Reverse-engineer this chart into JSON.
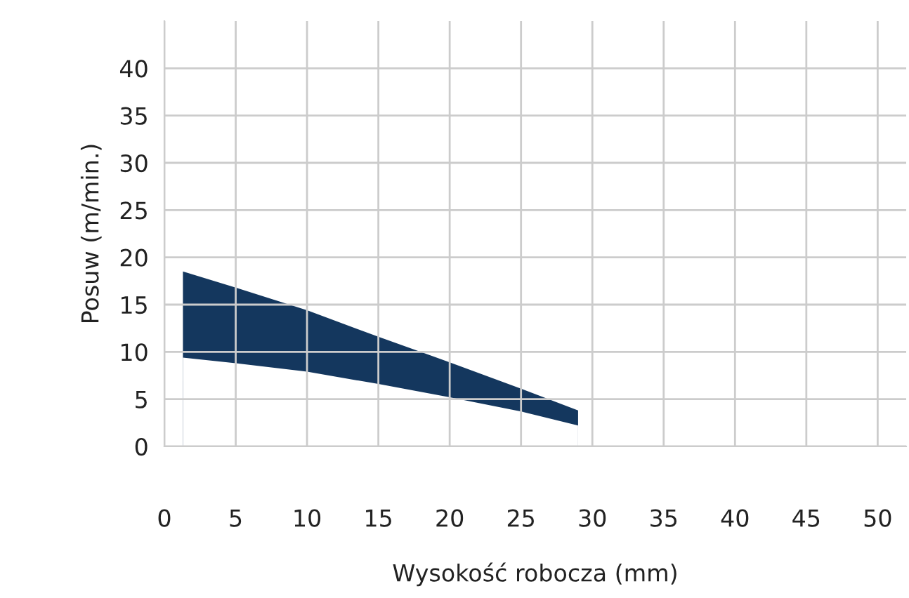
{
  "chart_data": {
    "type": "area",
    "xlabel": "Wysokość robocza (mm)",
    "ylabel": "Posuw (m/min.)",
    "series": [
      {
        "color": "#14375e",
        "x": [
          1.3,
          5,
          10,
          15,
          20,
          25,
          29
        ],
        "values": [
          18.5,
          16.8,
          14.4,
          11.6,
          8.9,
          6.1,
          3.8
        ]
      },
      {
        "color": "#ffffff",
        "x": [
          1.3,
          5,
          10,
          15,
          20,
          25,
          29
        ],
        "values": [
          9.4,
          8.8,
          7.9,
          6.6,
          5.2,
          3.7,
          2.2
        ]
      }
    ],
    "xlim": [
      0,
      52
    ],
    "ylim": [
      0,
      45
    ],
    "xticks": [
      0,
      5,
      10,
      15,
      20,
      25,
      30,
      35,
      40,
      45,
      50
    ],
    "yticks": [
      0,
      5,
      10,
      15,
      20,
      25,
      30,
      35,
      40
    ],
    "grid": true,
    "legend": false
  }
}
